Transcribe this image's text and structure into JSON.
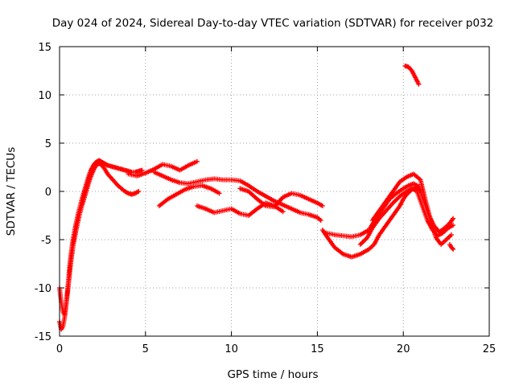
{
  "chart_data": {
    "type": "scatter",
    "title": "Day 024 of 2024, Sidereal Day-to-day VTEC variation (SDTVAR) for receiver p032",
    "xlabel": "GPS time / hours",
    "ylabel": "SDTVAR / TECUs",
    "xlim": [
      0,
      25
    ],
    "ylim": [
      -15,
      15
    ],
    "x_ticks": [
      0,
      5,
      10,
      15,
      20,
      25
    ],
    "y_ticks": [
      -15,
      -10,
      -5,
      0,
      5,
      10,
      15
    ],
    "grid": true,
    "marker": "+",
    "series": [
      {
        "name": "SDTVAR",
        "color": "#ff0000",
        "tracks": [
          {
            "x": [
              0.0,
              0.1,
              0.2,
              0.3,
              0.4,
              0.5,
              0.6,
              0.7,
              0.8,
              0.9,
              1.0,
              1.1,
              1.2,
              1.3,
              1.4,
              1.5,
              1.6,
              1.7,
              1.8,
              1.9,
              2.0,
              2.1,
              2.2,
              2.3,
              2.4,
              2.5,
              2.6,
              2.7,
              2.8,
              3.0,
              3.2,
              3.4,
              3.6,
              3.8,
              4.0,
              4.2,
              4.4,
              4.6,
              4.8
            ],
            "y": [
              -13.5,
              -14.3,
              -14.0,
              -13.0,
              -11.5,
              -9.5,
              -7.5,
              -6.0,
              -4.8,
              -3.8,
              -3.0,
              -2.2,
              -1.5,
              -0.8,
              -0.2,
              0.4,
              1.0,
              1.6,
              2.1,
              2.5,
              2.8,
              3.0,
              3.1,
              3.2,
              3.1,
              3.0,
              2.9,
              2.8,
              2.7,
              2.6,
              2.5,
              2.4,
              2.3,
              2.2,
              2.1,
              2.0,
              2.0,
              2.1,
              2.2
            ]
          },
          {
            "x": [
              0.0,
              0.1,
              0.2,
              0.3,
              0.4,
              0.5,
              0.6,
              0.7,
              0.8,
              0.9,
              1.0,
              1.1,
              1.2,
              1.3,
              1.4,
              1.5,
              1.6,
              1.7,
              1.8,
              1.9,
              2.0,
              2.1,
              2.2,
              2.3,
              2.4,
              2.5,
              2.6,
              2.7,
              2.8,
              3.0,
              3.2,
              3.4,
              3.6,
              3.8,
              4.0,
              4.2,
              4.4,
              4.6
            ],
            "y": [
              -10.0,
              -11.5,
              -12.5,
              -12.8,
              -11.5,
              -10.0,
              -8.3,
              -6.8,
              -5.5,
              -4.6,
              -3.7,
              -2.9,
              -2.2,
              -1.5,
              -0.9,
              -0.3,
              0.3,
              0.9,
              1.4,
              1.9,
              2.3,
              2.6,
              2.8,
              2.9,
              2.8,
              2.6,
              2.4,
              2.1,
              1.8,
              1.4,
              1.0,
              0.6,
              0.3,
              0.0,
              -0.2,
              -0.3,
              -0.2,
              0.0
            ]
          },
          {
            "x": [
              4.0,
              4.5,
              5.0,
              5.5,
              6.0,
              6.5,
              7.0,
              7.5,
              8.0
            ],
            "y": [
              1.8,
              1.6,
              1.9,
              2.3,
              2.8,
              2.6,
              2.2,
              2.7,
              3.1
            ]
          },
          {
            "x": [
              5.5,
              6.0,
              6.5,
              7.0,
              7.5,
              8.0,
              8.5,
              9.0,
              9.5,
              10.0,
              10.5,
              11.0,
              11.5,
              12.0,
              12.5,
              13.0,
              13.5,
              14.0,
              14.5,
              15.0,
              15.2
            ],
            "y": [
              2.0,
              1.6,
              1.2,
              0.9,
              0.8,
              1.0,
              1.2,
              1.3,
              1.2,
              1.2,
              1.1,
              0.6,
              0.0,
              -0.5,
              -1.0,
              -1.4,
              -1.8,
              -2.2,
              -2.4,
              -2.7,
              -3.0
            ]
          },
          {
            "x": [
              5.8,
              6.3,
              6.8,
              7.3,
              7.8,
              8.3,
              8.8,
              9.3
            ],
            "y": [
              -1.5,
              -0.8,
              -0.3,
              0.2,
              0.5,
              0.6,
              0.3,
              -0.2
            ]
          },
          {
            "x": [
              8.0,
              8.5,
              9.0,
              9.5,
              10.0,
              10.5,
              11.0,
              11.5,
              12.0,
              12.5,
              13.0
            ],
            "y": [
              -1.5,
              -1.8,
              -2.2,
              -2.0,
              -1.8,
              -2.3,
              -2.5,
              -1.8,
              -1.2,
              -1.5,
              -2.1
            ]
          },
          {
            "x": [
              10.5,
              11.0,
              11.5,
              12.0,
              12.5,
              13.0,
              13.5,
              14.0,
              14.5,
              15.0,
              15.3
            ],
            "y": [
              0.3,
              0.0,
              -0.8,
              -1.5,
              -1.6,
              -0.6,
              -0.2,
              -0.4,
              -0.8,
              -1.2,
              -1.5
            ]
          },
          {
            "x": [
              15.3,
              15.6,
              16.0,
              16.5,
              17.0,
              17.5,
              18.0,
              18.3,
              18.6,
              19.0,
              19.4,
              19.8,
              20.0,
              20.2,
              20.5,
              20.8,
              21.0
            ],
            "y": [
              -4.0,
              -4.8,
              -5.8,
              -6.5,
              -6.8,
              -6.5,
              -6.0,
              -5.5,
              -4.5,
              -3.5,
              -2.5,
              -1.5,
              -0.8,
              -0.3,
              0.2,
              0.5,
              0.0
            ]
          },
          {
            "x": [
              15.5,
              16.0,
              16.5,
              17.0,
              17.5,
              18.0,
              18.4,
              18.8,
              19.2,
              19.6,
              20.0,
              20.3,
              20.6,
              20.9,
              21.2,
              21.5,
              21.8,
              22.1,
              22.4,
              22.7,
              22.9
            ],
            "y": [
              -4.3,
              -4.5,
              -4.6,
              -4.7,
              -4.5,
              -4.0,
              -2.8,
              -1.8,
              -0.8,
              -0.2,
              0.3,
              0.6,
              0.8,
              0.5,
              -1.0,
              -2.5,
              -3.6,
              -4.2,
              -3.8,
              -3.3,
              -2.8
            ]
          },
          {
            "x": [
              17.5,
              17.9,
              18.2,
              18.6,
              19.0,
              19.4,
              19.8,
              20.2,
              20.5,
              20.8,
              21.1,
              21.4,
              21.7,
              22.0,
              22.3,
              22.6,
              22.9
            ],
            "y": [
              -5.5,
              -4.8,
              -3.8,
              -2.8,
              -2.0,
              -1.2,
              -0.5,
              0.0,
              0.3,
              0.0,
              -1.5,
              -3.0,
              -4.0,
              -4.6,
              -4.3,
              -3.8,
              -3.5
            ]
          },
          {
            "x": [
              18.2,
              18.6,
              19.0,
              19.4,
              19.8,
              20.2,
              20.6,
              21.0,
              21.3,
              21.6,
              21.9,
              22.2,
              22.5,
              22.8
            ],
            "y": [
              -3.0,
              -2.0,
              -1.0,
              0.0,
              1.0,
              1.5,
              1.8,
              1.2,
              -1.0,
              -3.0,
              -4.8,
              -5.5,
              -5.0,
              -4.5
            ]
          },
          {
            "x": [
              20.1,
              20.3,
              20.5,
              20.7,
              20.9
            ],
            "y": [
              13.0,
              12.9,
              12.5,
              11.8,
              11.1
            ]
          },
          {
            "x": [
              22.7,
              22.8,
              22.9
            ],
            "y": [
              -5.5,
              -5.8,
              -6.0
            ]
          }
        ]
      }
    ]
  }
}
